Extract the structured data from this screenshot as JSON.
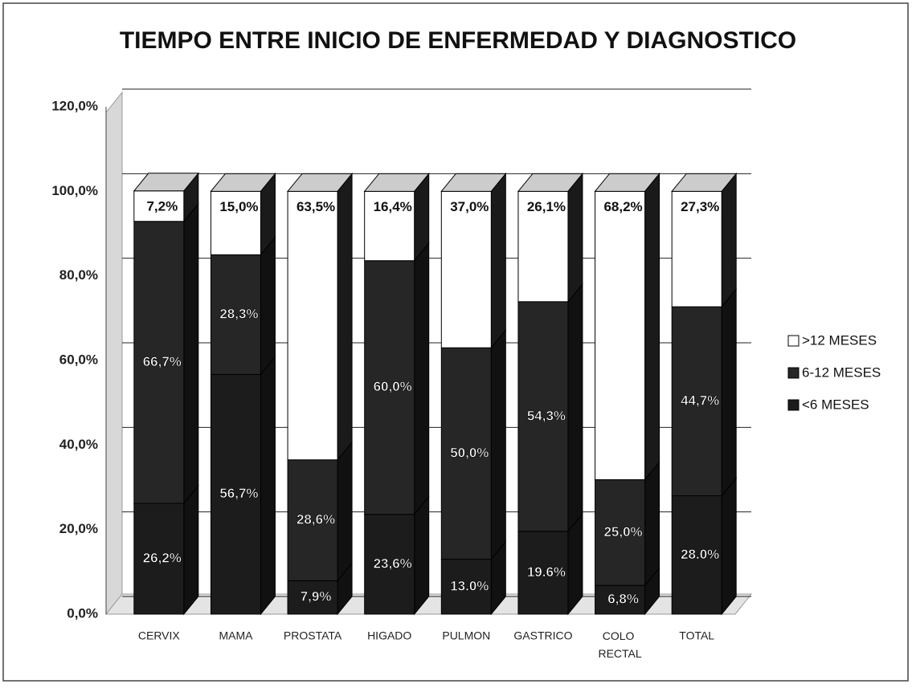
{
  "chart_data": {
    "type": "bar",
    "stacked": true,
    "title": "TIEMPO ENTRE INICIO DE ENFERMEDAD Y DIAGNOSTICO",
    "categories": [
      "CERVIX",
      "MAMA",
      "PROSTATA",
      "HIGADO",
      "PULMON",
      "GASTRICO",
      "COLO RECTAL",
      "TOTAL"
    ],
    "series": [
      {
        "name": "<6 MESES",
        "color": "#1c1c1c",
        "values": [
          26.2,
          56.7,
          7.9,
          23.6,
          13.0,
          19.6,
          6.8,
          28.0
        ],
        "value_labels": [
          "26,2%",
          "56,7%",
          "7,9%",
          "23,6%",
          "13.0%",
          "19.6%",
          "6,8%",
          "28.0%"
        ]
      },
      {
        "name": "6-12 MESES",
        "color": "#262626",
        "values": [
          66.7,
          28.3,
          28.6,
          60.0,
          50.0,
          54.3,
          25.0,
          44.7
        ],
        "value_labels": [
          "66,7%",
          "28,3%",
          "28,6%",
          "60,0%",
          "50,0%",
          "54,3%",
          "25,0%",
          "44,7%"
        ]
      },
      {
        "name": ">12 MESES",
        "color": "#ffffff",
        "values": [
          7.2,
          15.0,
          63.5,
          16.4,
          37.0,
          26.1,
          68.2,
          27.3
        ],
        "value_labels": [
          "7,2%",
          "15,0%",
          "63,5%",
          "16,4%",
          "37,0%",
          "26,1%",
          "68,2%",
          "27,3%"
        ]
      }
    ],
    "ylim": [
      0,
      120
    ],
    "yticks": [
      {
        "value": 0,
        "label": "0,0%"
      },
      {
        "value": 20,
        "label": "20,0%"
      },
      {
        "value": 40,
        "label": "40,0%"
      },
      {
        "value": 60,
        "label": "60,0%"
      },
      {
        "value": 80,
        "label": "80,0%"
      },
      {
        "value": 100,
        "label": "100,0%"
      },
      {
        "value": 120,
        "label": "120,0%"
      }
    ],
    "grid": true,
    "legend": "right"
  }
}
